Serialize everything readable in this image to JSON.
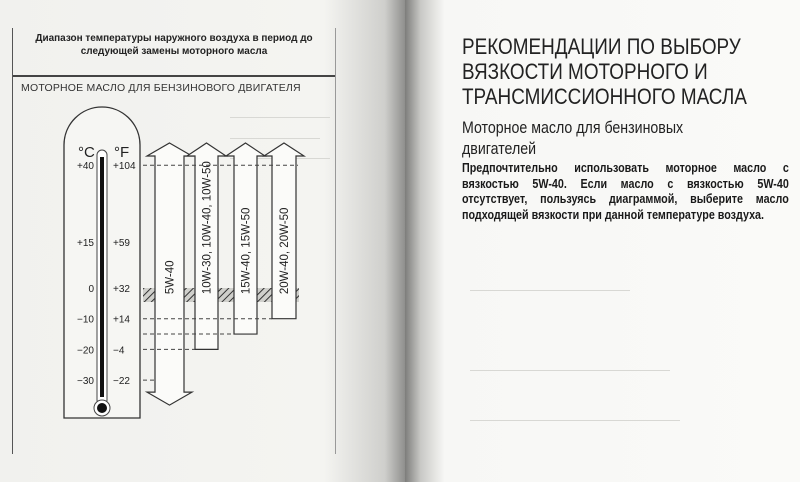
{
  "left_page": {
    "diagram_title": "Диапазон температуры наружного воздуха в период до следующей замены моторного масла",
    "diagram_subtitle": "МОТОРНОЕ МАСЛО ДЛЯ БЕНЗИНОВОГО ДВИГАТЕЛЯ",
    "unit_c": "°C",
    "unit_f": "°F",
    "scale": [
      {
        "c": "+40",
        "f": "+104",
        "value": 40
      },
      {
        "c": "+15",
        "f": "+59",
        "value": 15
      },
      {
        "c": "0",
        "f": "+32",
        "value": 0
      },
      {
        "c": "−10",
        "f": "+14",
        "value": -10
      },
      {
        "c": "−20",
        "f": "−4",
        "value": -20
      },
      {
        "c": "−30",
        "f": "−22",
        "value": -30
      }
    ],
    "oil_grades": [
      {
        "label": "5W-40",
        "min_temp_c": -30
      },
      {
        "label": "10W-30, 10W-40, 10W-50",
        "min_temp_c": -20
      },
      {
        "label": "15W-40, 15W-50",
        "min_temp_c": -15
      },
      {
        "label": "20W-40, 20W-50",
        "min_temp_c": -10
      }
    ]
  },
  "right_page": {
    "title_lines": [
      "РЕКОМЕНДАЦИИ ПО ВЫБОРУ",
      "ВЯЗКОСТИ МОТОРНОГО И",
      "ТРАНСМИССИОННОГО МАСЛА"
    ],
    "subtitle_lines": [
      "Моторное масло для бензиновых",
      "двигателей"
    ],
    "body": "Предпочтительно использовать моторное масло с вязкостью 5W-40. Если масло с вязкостью 5W-40 отсутствует, пользуясь диаграммой, выберите масло подходящей вязкости при данной температуре воздуха."
  }
}
